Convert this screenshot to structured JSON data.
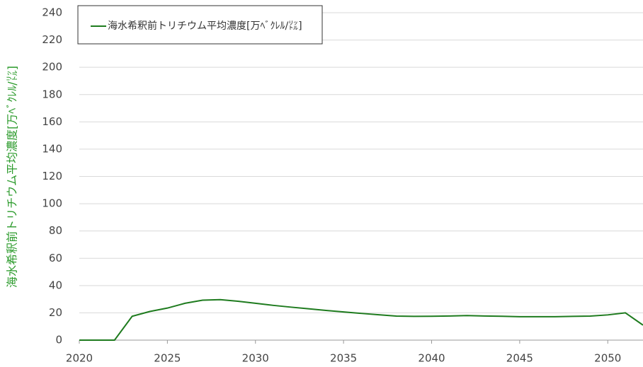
{
  "chart_data": {
    "type": "line",
    "ylabel": "海水希釈前トリチウム平均濃度[万ﾍﾞｸﾚﾙ/㍑]",
    "x": [
      2020,
      2021,
      2022,
      2023,
      2024,
      2025,
      2026,
      2027,
      2028,
      2029,
      2030,
      2031,
      2032,
      2033,
      2034,
      2035,
      2036,
      2037,
      2038,
      2039,
      2040,
      2041,
      2042,
      2043,
      2044,
      2045,
      2046,
      2047,
      2048,
      2049,
      2050,
      2051,
      2052
    ],
    "series": [
      {
        "name": "海水希釈前トリチウム平均濃度[万ﾍﾞｸﾚﾙ/㍑]",
        "color": "#1e7b1e",
        "values": [
          0,
          0,
          0,
          17.5,
          21,
          23.5,
          27,
          29.3,
          29.7,
          28.5,
          27,
          25.5,
          24.2,
          23,
          21.8,
          20.7,
          19.6,
          18.6,
          17.6,
          17.4,
          17.5,
          17.7,
          18,
          17.7,
          17.5,
          17.2,
          17.2,
          17.2,
          17.4,
          17.6,
          18.5,
          20,
          11
        ]
      }
    ],
    "xlim": [
      2020,
      2052
    ],
    "xticks": [
      2020,
      2025,
      2030,
      2035,
      2040,
      2045,
      2050
    ],
    "ylim": [
      0,
      240
    ],
    "yticks": [
      0,
      20,
      40,
      60,
      80,
      100,
      120,
      140,
      160,
      180,
      200,
      220,
      240
    ],
    "grid": true,
    "legend": "top-left"
  }
}
